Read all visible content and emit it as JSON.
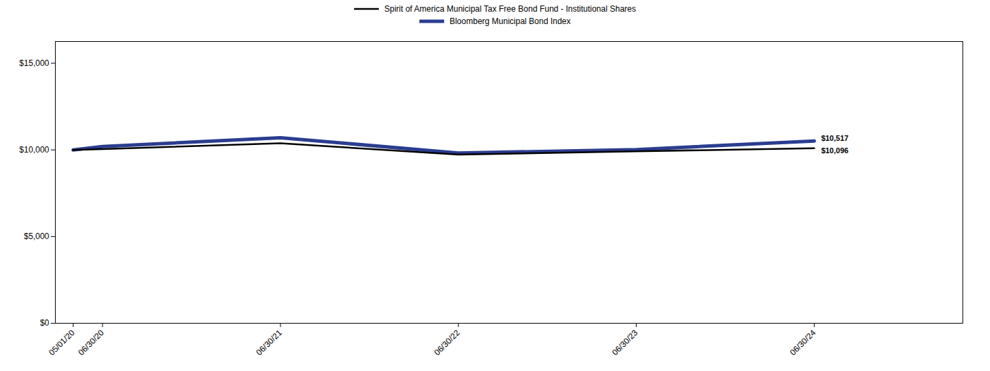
{
  "chart_data": {
    "type": "line",
    "x": [
      0,
      0.165,
      1.165,
      2.165,
      3.165,
      4.165
    ],
    "series": [
      {
        "name": "Spirit of America Municipal Tax Free Bond Fund - Institutional Shares",
        "color": "#000000",
        "values": [
          10000,
          10050,
          10380,
          9730,
          9920,
          10096
        ]
      },
      {
        "name": "Bloomberg Municipal Bond Index",
        "color": "#2b3d8f",
        "values": [
          10000,
          10200,
          10700,
          9820,
          10020,
          10517
        ]
      }
    ],
    "xlim": [
      -0.1,
      5.0
    ],
    "xticks": [
      {
        "value": 0,
        "label": "05/01/20"
      },
      {
        "value": 0.165,
        "label": "06/30/20"
      },
      {
        "value": 1.165,
        "label": "06/30/21"
      },
      {
        "value": 2.165,
        "label": "06/30/22"
      },
      {
        "value": 3.165,
        "label": "06/30/23"
      },
      {
        "value": 4.165,
        "label": "06/30/24"
      }
    ],
    "ylim": [
      0,
      16250
    ],
    "yticks": [
      {
        "value": 0,
        "label": "$0"
      },
      {
        "value": 5000,
        "label": "$5,000"
      },
      {
        "value": 10000,
        "label": "$10,000"
      },
      {
        "value": 15000,
        "label": "$15,000"
      }
    ],
    "annotations": [
      {
        "text": "$10,517",
        "x": 4.165,
        "y": 10517
      },
      {
        "text": "$10,096",
        "x": 4.165,
        "y": 10096
      }
    ],
    "grid": false,
    "legend": "top"
  }
}
